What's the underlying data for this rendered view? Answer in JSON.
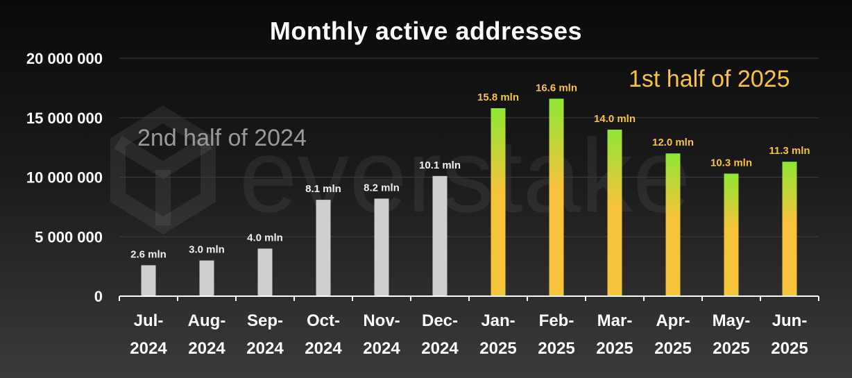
{
  "title": "Monthly active addresses",
  "watermark": "everstake",
  "annotations": {
    "left": "2nd half of 2024",
    "right": "1st half of 2025"
  },
  "colors": {
    "gray_bar": "#cfcfcf",
    "gold_bottom": "#f6c33b",
    "green_top": "#8fe636",
    "label_gold": "#f6c33b"
  },
  "chart_data": {
    "type": "bar",
    "categories": [
      "Jul-2024",
      "Aug-2024",
      "Sep-2024",
      "Oct-2024",
      "Nov-2024",
      "Dec-2024",
      "Jan-2025",
      "Feb-2025",
      "Mar-2025",
      "Apr-2025",
      "May-2025",
      "Jun-2025"
    ],
    "category_lines": [
      [
        "Jul-",
        "2024"
      ],
      [
        "Aug-",
        "2024"
      ],
      [
        "Sep-",
        "2024"
      ],
      [
        "Oct-",
        "2024"
      ],
      [
        "Nov-",
        "2024"
      ],
      [
        "Dec-",
        "2024"
      ],
      [
        "Jan-",
        "2025"
      ],
      [
        "Feb-",
        "2025"
      ],
      [
        "Mar-",
        "2025"
      ],
      [
        "Apr-",
        "2025"
      ],
      [
        "May-",
        "2025"
      ],
      [
        "Jun-",
        "2025"
      ]
    ],
    "values": [
      2600000,
      3000000,
      4000000,
      8100000,
      8200000,
      10100000,
      15800000,
      16600000,
      14000000,
      12000000,
      10300000,
      11300000
    ],
    "data_labels": [
      "2.6 mln",
      "3.0 mln",
      "4.0 mln",
      "8.1 mln",
      "8.2 mln",
      "10.1 mln",
      "15.8 mln",
      "16.6 mln",
      "14.0 mln",
      "12.0 mln",
      "10.3 mln",
      "11.3 mln"
    ],
    "groups": [
      "2024",
      "2024",
      "2024",
      "2024",
      "2024",
      "2024",
      "2025",
      "2025",
      "2025",
      "2025",
      "2025",
      "2025"
    ],
    "ylim": [
      0,
      20000000
    ],
    "yticks": [
      0,
      5000000,
      10000000,
      15000000,
      20000000
    ],
    "ytick_labels": [
      "0",
      "5 000 000",
      "10 000 000",
      "15 000 000",
      "20 000 000"
    ],
    "grid": true
  }
}
